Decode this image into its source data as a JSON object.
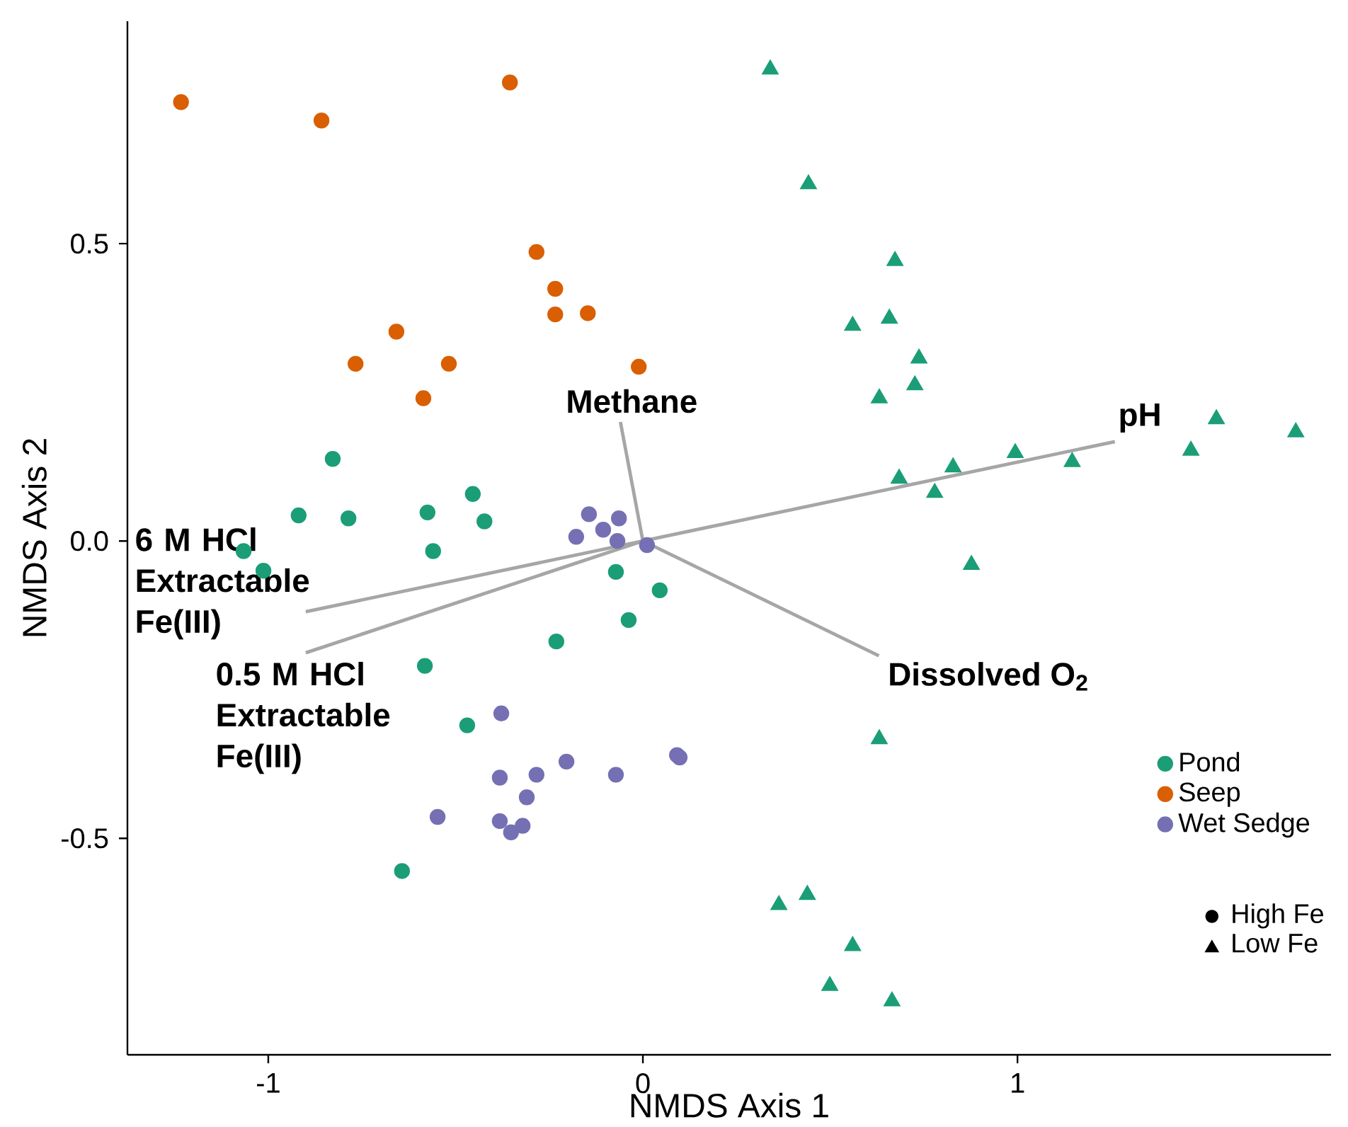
{
  "chart_data": {
    "type": "scatter",
    "xlabel": "NMDS Axis 1",
    "ylabel": "NMDS Axis 2",
    "xlim": [
      -1.376,
      1.837
    ],
    "ylim": [
      -0.864,
      0.874
    ],
    "xticks": [
      -1,
      0,
      1
    ],
    "yticks": [
      -0.5,
      {
        "value": 0,
        "label": "0.0"
      },
      0.5
    ],
    "grid": false,
    "legend": "bottom right",
    "annotations": [
      "High Fe",
      "Low Fe"
    ],
    "series": [
      {
        "name": "Pond",
        "color": "#1b9e77",
        "marker": "circle",
        "x": [
          -0.828,
          -0.919,
          -0.786,
          -0.575,
          -0.454,
          -0.423,
          -0.56,
          -1.066,
          -1.013,
          -0.072,
          0.045,
          -0.038,
          -0.231,
          -0.582,
          -0.469,
          -0.643
        ],
        "values": [
          0.138,
          0.043,
          0.038,
          0.048,
          0.079,
          0.033,
          -0.017,
          -0.017,
          -0.05,
          -0.052,
          -0.083,
          -0.133,
          -0.169,
          -0.21,
          -0.31,
          -0.555
        ]
      },
      {
        "color": "#1b9e77",
        "marker": "triangle",
        "x": [
          0.34,
          0.442,
          0.673,
          0.56,
          0.658,
          0.737,
          0.726,
          0.631,
          1.531,
          1.743,
          1.463,
          1.146,
          0.994,
          0.828,
          0.684,
          0.779,
          0.877,
          0.631,
          0.363,
          0.439,
          0.56,
          0.499,
          0.665
        ],
        "values": [
          0.793,
          0.6,
          0.471,
          0.362,
          0.374,
          0.307,
          0.262,
          0.24,
          0.205,
          0.183,
          0.152,
          0.133,
          0.148,
          0.124,
          0.105,
          0.081,
          -0.04,
          -0.333,
          -0.612,
          -0.595,
          -0.681,
          -0.748,
          -0.774
        ]
      },
      {
        "name": "Seep",
        "color": "#d95f02",
        "marker": "circle",
        "x": [
          -1.233,
          -0.858,
          -0.355,
          -0.284,
          -0.234,
          -0.234,
          -0.147,
          -0.658,
          -0.767,
          -0.518,
          -0.586,
          -0.011
        ],
        "values": [
          0.738,
          0.707,
          0.771,
          0.486,
          0.424,
          0.381,
          0.383,
          0.352,
          0.298,
          0.298,
          0.24,
          0.293
        ]
      },
      {
        "name": "Wet Sedge",
        "color": "#7570b3",
        "marker": "circle",
        "x": [
          -0.144,
          -0.064,
          -0.106,
          -0.178,
          -0.068,
          0.011,
          -0.378,
          -0.382,
          -0.284,
          -0.204,
          -0.072,
          0.091,
          0.098,
          -0.31,
          -0.548,
          -0.382,
          -0.321,
          -0.352
        ],
        "values": [
          0.045,
          0.038,
          0.019,
          0.007,
          0.0,
          -0.007,
          -0.29,
          -0.398,
          -0.393,
          -0.371,
          -0.393,
          -0.36,
          -0.364,
          -0.431,
          -0.464,
          -0.471,
          -0.479,
          -0.49
        ]
      },
      {
        "name": "Methane",
        "type": "line",
        "color": "#a6a6a6",
        "line_style": "solid",
        "x": [
          0,
          -0.06
        ],
        "values": [
          0,
          0.2
        ]
      },
      {
        "name": "pH",
        "type": "line",
        "color": "#a6a6a6",
        "line_style": "solid",
        "x": [
          0,
          1.26
        ],
        "values": [
          0,
          0.167
        ]
      },
      {
        "name": "6 M HCl Extractable Fe(III)",
        "type": "line",
        "color": "#a6a6a6",
        "line_style": "solid",
        "x": [
          0,
          -0.9
        ],
        "values": [
          0,
          -0.119
        ]
      },
      {
        "name": "0.5 M HCl Extractable Fe(III)",
        "type": "line",
        "color": "#a6a6a6",
        "line_style": "solid",
        "x": [
          0,
          -0.9
        ],
        "values": [
          0,
          -0.188
        ]
      },
      {
        "name": "Dissolved O$_{2}$",
        "type": "line",
        "color": "#a6a6a6",
        "line_style": "solid",
        "x": [
          0,
          0.63
        ],
        "values": [
          0,
          -0.193
        ]
      }
    ]
  }
}
